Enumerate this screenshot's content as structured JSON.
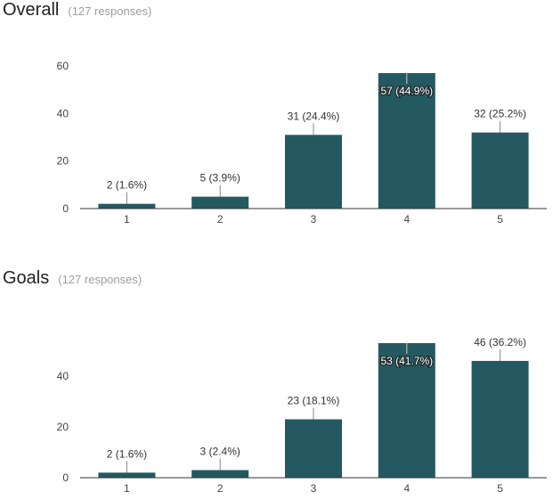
{
  "chart_data": [
    {
      "type": "bar",
      "title": "Overall",
      "subtitle": "(127 responses)",
      "categories": [
        "1",
        "2",
        "3",
        "4",
        "5"
      ],
      "values": [
        2,
        5,
        31,
        57,
        32
      ],
      "labels": [
        "2 (1.6%)",
        "5 (3.9%)",
        "31 (24.4%)",
        "57 (44.9%)",
        "32 (25.2%)"
      ],
      "yticks": [
        0,
        20,
        40,
        60
      ],
      "ylim": [
        0,
        60
      ],
      "xlabel": "",
      "ylabel": "",
      "grid": false,
      "bar_color": "#255961"
    },
    {
      "type": "bar",
      "title": "Goals",
      "subtitle": "(127 responses)",
      "categories": [
        "1",
        "2",
        "3",
        "4",
        "5"
      ],
      "values": [
        2,
        3,
        23,
        53,
        46
      ],
      "labels": [
        "2 (1.6%)",
        "3 (2.4%)",
        "23 (18.1%)",
        "53 (41.7%)",
        "46 (36.2%)"
      ],
      "yticks": [
        0,
        20,
        40
      ],
      "ylim": [
        0,
        53
      ],
      "xlabel": "",
      "ylabel": "",
      "grid": false,
      "bar_color": "#255961"
    }
  ]
}
